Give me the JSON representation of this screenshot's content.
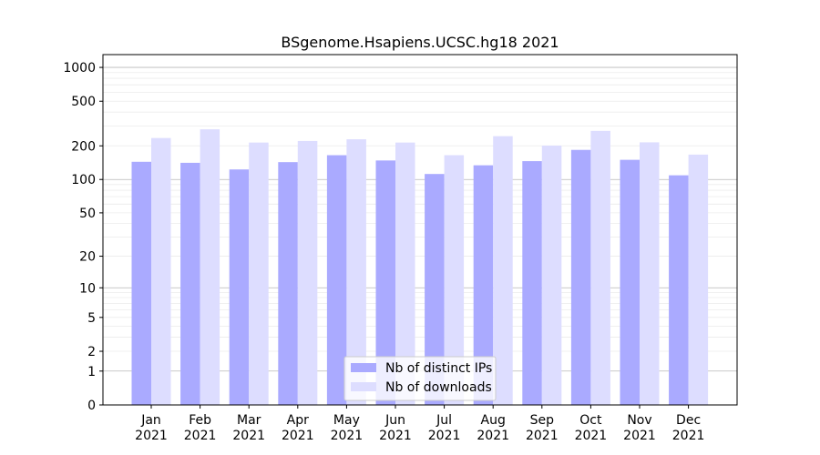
{
  "chart_data": {
    "type": "bar",
    "title": "BSgenome.Hsapiens.UCSC.hg18 2021",
    "xlabel": "",
    "ylabel": "",
    "yscale": "log1p",
    "ylim": [
      0,
      1300
    ],
    "yticks": [
      0,
      1,
      2,
      5,
      10,
      20,
      50,
      100,
      200,
      500,
      1000
    ],
    "grid": true,
    "legend_position": "bottom-center",
    "categories": [
      "Jan\n2021",
      "Feb\n2021",
      "Mar\n2021",
      "Apr\n2021",
      "May\n2021",
      "Jun\n2021",
      "Jul\n2021",
      "Aug\n2021",
      "Sep\n2021",
      "Oct\n2021",
      "Nov\n2021",
      "Dec\n2021"
    ],
    "series": [
      {
        "name": "Nb of distinct IPs",
        "color": "#aaaaff",
        "values": [
          144,
          141,
          123,
          143,
          165,
          148,
          112,
          134,
          146,
          184,
          150,
          109
        ]
      },
      {
        "name": "Nb of downloads",
        "color": "#ddddff",
        "values": [
          235,
          281,
          214,
          221,
          229,
          214,
          165,
          244,
          201,
          272,
          215,
          167
        ]
      }
    ]
  }
}
